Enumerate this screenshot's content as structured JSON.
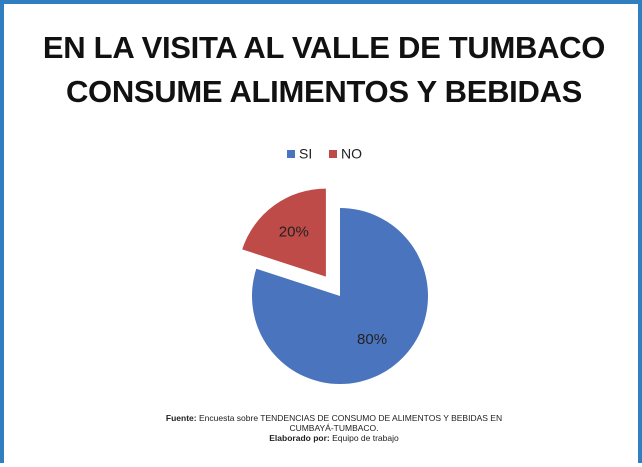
{
  "chart_data": {
    "type": "pie",
    "title": "EN LA VISITA AL VALLE DE TUMBACO CONSUME ALIMENTOS Y BEBIDAS",
    "categories": [
      "SI",
      "NO"
    ],
    "values": [
      80,
      20
    ],
    "value_labels": [
      "80%",
      "20%"
    ],
    "colors": [
      "#4a74bd",
      "#bf4b49"
    ],
    "legend": "top",
    "source_label": "Fuente:",
    "source": "Encuesta sobre TENDENCIAS DE CONSUMO DE ALIMENTOS Y BEBIDAS EN CUMBAYÁ-TUMBACO.",
    "author_label": "Elaborado por:",
    "author": "Equipo de trabajo"
  }
}
